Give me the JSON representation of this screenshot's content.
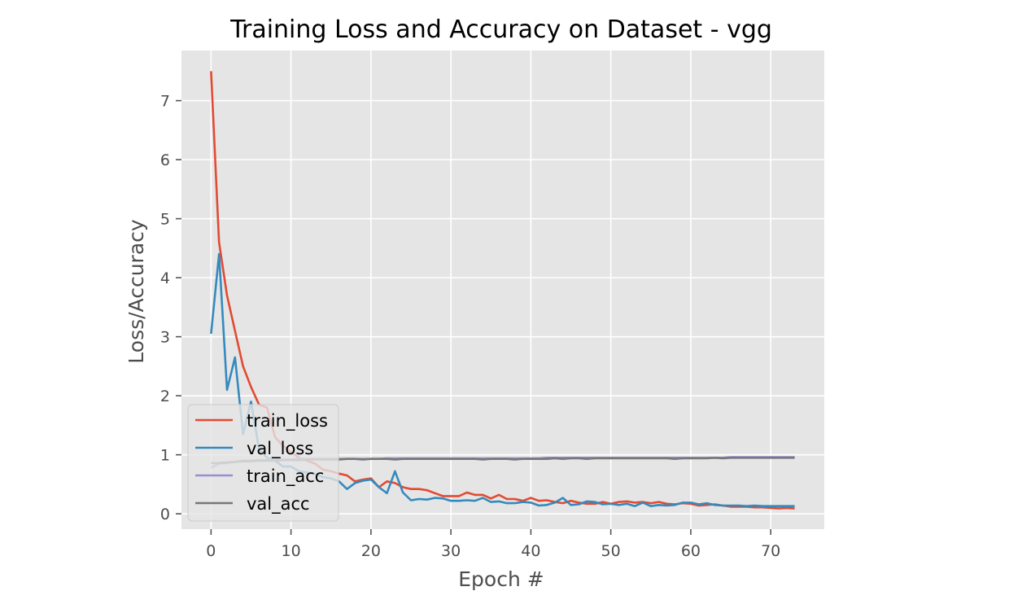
{
  "chart_data": {
    "type": "line",
    "title": "Training Loss and Accuracy on Dataset - vgg",
    "xlabel": "Epoch #",
    "ylabel": "Loss/Accuracy",
    "xlim": [
      -3.7,
      76.7
    ],
    "ylim": [
      -0.26,
      7.85
    ],
    "xticks": [
      0,
      10,
      20,
      30,
      40,
      50,
      60,
      70
    ],
    "yticks": [
      0,
      1,
      2,
      3,
      4,
      5,
      6,
      7
    ],
    "grid": true,
    "legend_position": "lower-left",
    "x": [
      0,
      1,
      2,
      3,
      4,
      5,
      6,
      7,
      8,
      9,
      10,
      11,
      12,
      13,
      14,
      15,
      16,
      17,
      18,
      19,
      20,
      21,
      22,
      23,
      24,
      25,
      26,
      27,
      28,
      29,
      30,
      31,
      32,
      33,
      34,
      35,
      36,
      37,
      38,
      39,
      40,
      41,
      42,
      43,
      44,
      45,
      46,
      47,
      48,
      49,
      50,
      51,
      52,
      53,
      54,
      55,
      56,
      57,
      58,
      59,
      60,
      61,
      62,
      63,
      64,
      65,
      66,
      67,
      68,
      69,
      70,
      71,
      72,
      73
    ],
    "series": [
      {
        "name": "train_loss",
        "color": "#e24a33",
        "values": [
          7.5,
          4.6,
          3.7,
          3.1,
          2.5,
          2.15,
          1.85,
          1.8,
          1.3,
          1.15,
          1.05,
          0.95,
          0.9,
          0.85,
          0.75,
          0.72,
          0.68,
          0.65,
          0.55,
          0.58,
          0.6,
          0.45,
          0.55,
          0.52,
          0.45,
          0.42,
          0.42,
          0.4,
          0.35,
          0.3,
          0.3,
          0.3,
          0.36,
          0.32,
          0.32,
          0.26,
          0.32,
          0.25,
          0.25,
          0.22,
          0.27,
          0.22,
          0.23,
          0.2,
          0.18,
          0.22,
          0.19,
          0.17,
          0.17,
          0.2,
          0.17,
          0.2,
          0.21,
          0.19,
          0.2,
          0.18,
          0.2,
          0.17,
          0.16,
          0.18,
          0.17,
          0.14,
          0.15,
          0.16,
          0.14,
          0.12,
          0.12,
          0.12,
          0.11,
          0.11,
          0.1,
          0.09,
          0.1,
          0.09
        ]
      },
      {
        "name": "val_loss",
        "color": "#348abd",
        "values": [
          3.05,
          4.4,
          2.1,
          2.65,
          1.35,
          1.9,
          1.1,
          0.95,
          0.9,
          0.8,
          0.8,
          0.72,
          0.7,
          0.68,
          0.62,
          0.6,
          0.55,
          0.42,
          0.52,
          0.56,
          0.58,
          0.45,
          0.35,
          0.72,
          0.36,
          0.23,
          0.25,
          0.24,
          0.27,
          0.26,
          0.22,
          0.22,
          0.23,
          0.22,
          0.27,
          0.2,
          0.21,
          0.18,
          0.18,
          0.2,
          0.19,
          0.14,
          0.15,
          0.19,
          0.27,
          0.15,
          0.16,
          0.21,
          0.2,
          0.16,
          0.17,
          0.15,
          0.17,
          0.13,
          0.19,
          0.13,
          0.15,
          0.14,
          0.15,
          0.19,
          0.19,
          0.16,
          0.18,
          0.15,
          0.14,
          0.14,
          0.14,
          0.13,
          0.14,
          0.13,
          0.13,
          0.13,
          0.13,
          0.13
        ]
      },
      {
        "name": "train_acc",
        "color": "#988ed5",
        "values": [
          0.78,
          0.85,
          0.86,
          0.88,
          0.9,
          0.9,
          0.91,
          0.91,
          0.92,
          0.92,
          0.92,
          0.93,
          0.93,
          0.93,
          0.93,
          0.93,
          0.93,
          0.93,
          0.93,
          0.93,
          0.93,
          0.93,
          0.94,
          0.94,
          0.94,
          0.94,
          0.94,
          0.94,
          0.94,
          0.94,
          0.94,
          0.94,
          0.94,
          0.94,
          0.94,
          0.94,
          0.94,
          0.94,
          0.94,
          0.94,
          0.94,
          0.94,
          0.95,
          0.95,
          0.95,
          0.95,
          0.95,
          0.95,
          0.95,
          0.95,
          0.95,
          0.95,
          0.95,
          0.95,
          0.95,
          0.95,
          0.95,
          0.95,
          0.95,
          0.95,
          0.95,
          0.95,
          0.95,
          0.95,
          0.95,
          0.96,
          0.96,
          0.96,
          0.96,
          0.96,
          0.96,
          0.96,
          0.96,
          0.96
        ]
      },
      {
        "name": "val_acc",
        "color": "#777777",
        "values": [
          0.86,
          0.86,
          0.87,
          0.88,
          0.89,
          0.89,
          0.9,
          0.9,
          0.9,
          0.91,
          0.91,
          0.91,
          0.92,
          0.92,
          0.92,
          0.92,
          0.92,
          0.93,
          0.93,
          0.92,
          0.93,
          0.93,
          0.93,
          0.92,
          0.93,
          0.93,
          0.93,
          0.93,
          0.93,
          0.93,
          0.93,
          0.93,
          0.93,
          0.93,
          0.92,
          0.93,
          0.93,
          0.93,
          0.92,
          0.93,
          0.93,
          0.93,
          0.93,
          0.94,
          0.93,
          0.94,
          0.94,
          0.93,
          0.94,
          0.94,
          0.94,
          0.94,
          0.94,
          0.94,
          0.94,
          0.94,
          0.94,
          0.94,
          0.93,
          0.94,
          0.94,
          0.94,
          0.94,
          0.95,
          0.94,
          0.95,
          0.95,
          0.95,
          0.95,
          0.95,
          0.95,
          0.95,
          0.95,
          0.95
        ]
      }
    ]
  }
}
